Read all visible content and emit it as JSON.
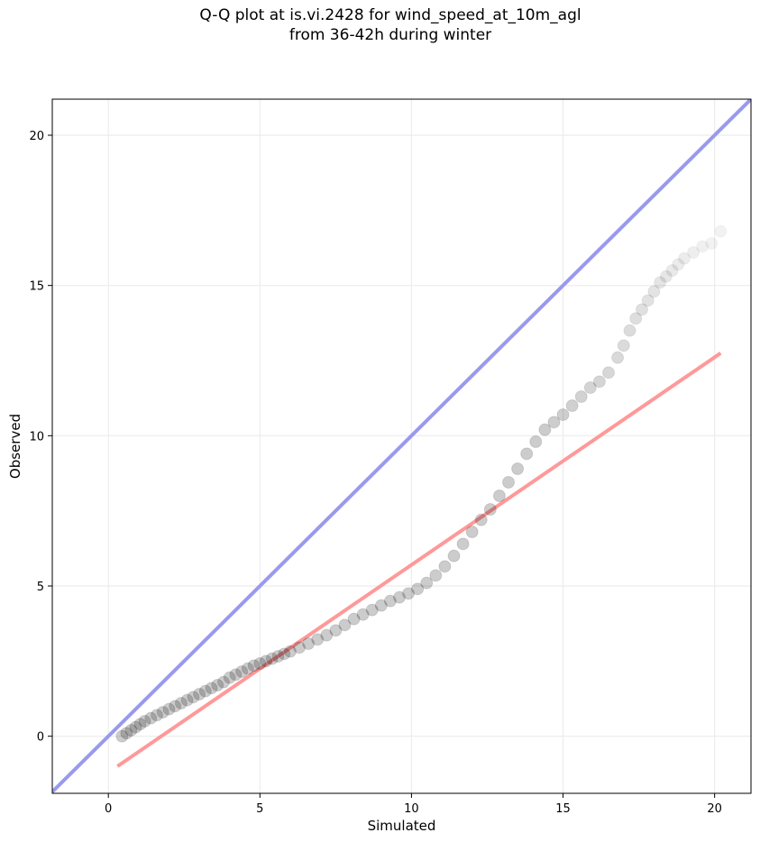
{
  "chart_data": {
    "type": "scatter",
    "title": "Q-Q plot at is.vi.2428 for wind_speed_at_10m_agl",
    "subtitle": "from 36-42h during winter",
    "xlabel": "Simulated",
    "ylabel": "Observed",
    "xlim": [
      -1.85,
      21.2
    ],
    "ylim": [
      -1.9,
      21.2
    ],
    "xticks": [
      0,
      5,
      10,
      15,
      20
    ],
    "yticks": [
      0,
      5,
      10,
      15,
      20
    ],
    "grid": true,
    "legend": "none",
    "series": [
      {
        "kind": "points",
        "color": "#000000",
        "x": [
          0.45,
          0.6,
          0.75,
          0.9,
          1.05,
          1.2,
          1.4,
          1.6,
          1.8,
          2.0,
          2.2,
          2.4,
          2.6,
          2.8,
          3.0,
          3.2,
          3.4,
          3.6,
          3.8,
          4.0,
          4.2,
          4.4,
          4.6,
          4.8,
          5.0,
          5.2,
          5.4,
          5.6,
          5.8,
          6.0,
          6.3,
          6.6,
          6.9,
          7.2,
          7.5,
          7.8,
          8.1,
          8.4,
          8.7,
          9.0,
          9.3,
          9.6,
          9.9,
          10.2,
          10.5,
          10.8,
          11.1,
          11.4,
          11.7,
          12.0,
          12.3,
          12.6,
          12.9,
          13.2,
          13.5,
          13.8,
          14.1,
          14.4,
          14.7,
          15.0,
          15.3,
          15.6,
          15.9,
          16.2,
          16.5,
          16.8,
          17.0,
          17.2,
          17.4,
          17.6,
          17.8,
          18.0,
          18.2,
          18.4,
          18.6,
          18.8,
          19.0,
          19.3,
          19.6,
          19.9,
          20.2
        ],
        "y": [
          0.0,
          0.1,
          0.2,
          0.3,
          0.4,
          0.5,
          0.6,
          0.7,
          0.8,
          0.9,
          1.0,
          1.1,
          1.2,
          1.3,
          1.4,
          1.5,
          1.6,
          1.7,
          1.8,
          1.95,
          2.05,
          2.15,
          2.25,
          2.35,
          2.42,
          2.5,
          2.58,
          2.66,
          2.74,
          2.82,
          2.95,
          3.08,
          3.22,
          3.36,
          3.52,
          3.7,
          3.9,
          4.05,
          4.2,
          4.35,
          4.5,
          4.62,
          4.75,
          4.9,
          5.1,
          5.35,
          5.65,
          6.0,
          6.4,
          6.8,
          7.2,
          7.55,
          8.0,
          8.45,
          8.9,
          9.4,
          9.8,
          10.2,
          10.45,
          10.7,
          11.0,
          11.3,
          11.6,
          11.8,
          12.1,
          12.6,
          13.0,
          13.5,
          13.9,
          14.2,
          14.5,
          14.8,
          15.1,
          15.3,
          15.5,
          15.7,
          15.9,
          16.1,
          16.3,
          16.4,
          16.8
        ]
      },
      {
        "kind": "line",
        "color": "#ff9999",
        "x": [
          0.3,
          20.2
        ],
        "y": [
          -1.0,
          12.75
        ]
      },
      {
        "kind": "line",
        "color": "#9999ee",
        "x": [
          -1.85,
          21.2
        ],
        "y": [
          -1.85,
          21.2
        ]
      }
    ]
  }
}
